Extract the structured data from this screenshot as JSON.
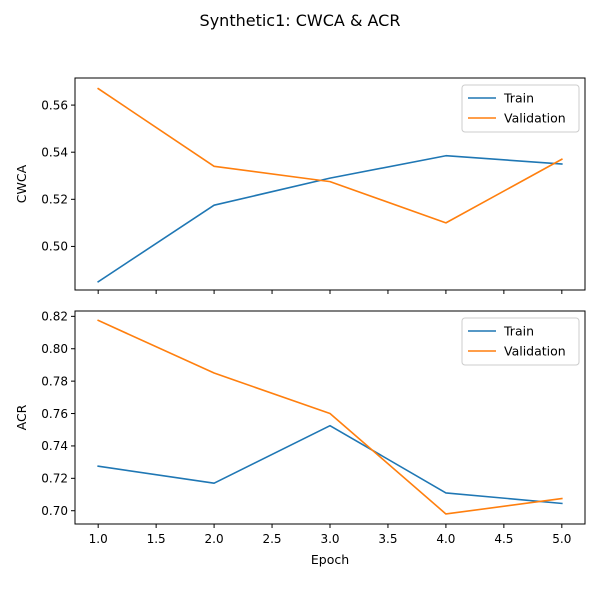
{
  "figure": {
    "title": "Synthetic1: CWCA & ACR"
  },
  "colors": {
    "train": "#1f77b4",
    "validation": "#ff7f0e"
  },
  "chart_data": [
    {
      "type": "line",
      "title": "",
      "xlabel": "",
      "ylabel": "CWCA",
      "x": [
        1,
        2,
        3,
        4,
        5
      ],
      "xlim": [
        0.8,
        5.2
      ],
      "ylim": [
        0.4815,
        0.5715
      ],
      "xticks": [
        1.0,
        1.5,
        2.0,
        2.5,
        3.0,
        3.5,
        4.0,
        4.5,
        5.0
      ],
      "xtick_labels_visible": false,
      "yticks": [
        0.5,
        0.52,
        0.54,
        0.56
      ],
      "ytick_labels": [
        "0.50",
        "0.52",
        "0.54",
        "0.56"
      ],
      "legend": "top-right",
      "grid": false,
      "series": [
        {
          "name": "Train",
          "color": "#1f77b4",
          "values": [
            0.485,
            0.5175,
            0.529,
            0.5385,
            0.535
          ]
        },
        {
          "name": "Validation",
          "color": "#ff7f0e",
          "values": [
            0.567,
            0.534,
            0.5275,
            0.51,
            0.537
          ]
        }
      ]
    },
    {
      "type": "line",
      "title": "",
      "xlabel": "Epoch",
      "ylabel": "ACR",
      "x": [
        1,
        2,
        3,
        4,
        5
      ],
      "xlim": [
        0.8,
        5.2
      ],
      "ylim": [
        0.6918,
        0.8233
      ],
      "xticks": [
        1.0,
        1.5,
        2.0,
        2.5,
        3.0,
        3.5,
        4.0,
        4.5,
        5.0
      ],
      "xtick_labels": [
        "1.0",
        "1.5",
        "2.0",
        "2.5",
        "3.0",
        "3.5",
        "4.0",
        "4.5",
        "5.0"
      ],
      "xtick_labels_visible": true,
      "yticks": [
        0.7,
        0.72,
        0.74,
        0.76,
        0.78,
        0.8,
        0.82
      ],
      "ytick_labels": [
        "0.70",
        "0.72",
        "0.74",
        "0.76",
        "0.78",
        "0.80",
        "0.82"
      ],
      "legend": "top-right",
      "grid": false,
      "series": [
        {
          "name": "Train",
          "color": "#1f77b4",
          "values": [
            0.7275,
            0.717,
            0.7525,
            0.711,
            0.7045
          ]
        },
        {
          "name": "Validation",
          "color": "#ff7f0e",
          "values": [
            0.8175,
            0.785,
            0.76,
            0.698,
            0.7075
          ]
        }
      ]
    }
  ]
}
